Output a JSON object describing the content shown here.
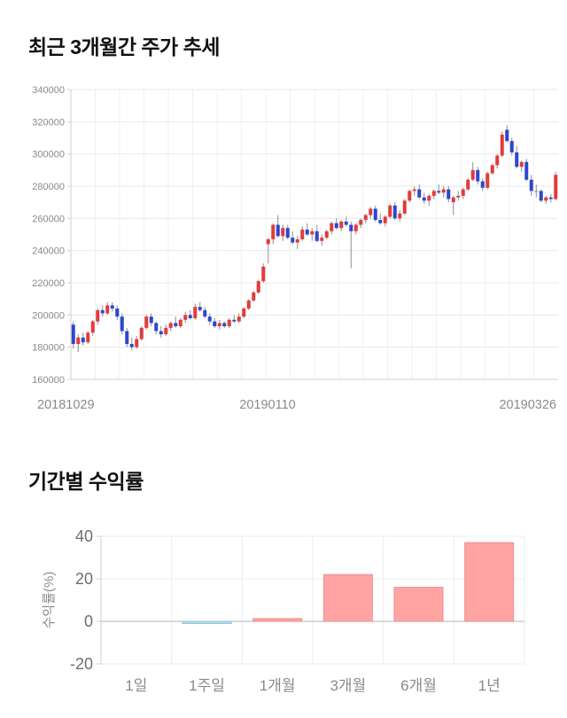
{
  "chart_data": [
    {
      "type": "candlestick",
      "title": "최근 3개월간 주가 추세",
      "x_tick_labels": [
        "20181029",
        "20190110",
        "20190326"
      ],
      "y_ticks": [
        340000,
        320000,
        300000,
        280000,
        260000,
        240000,
        220000,
        200000,
        180000,
        160000
      ],
      "ylim": [
        160000,
        340000
      ],
      "unit": "KRW",
      "grid": true,
      "colors": {
        "up": "#e23b3b",
        "down": "#2c47cf",
        "wick": "#8c8c8c",
        "grid": "#e8e8e8",
        "grid_vertical": "#f1f1f1",
        "axis": "#cfcfcf",
        "tick_text": "#8a8a8a"
      },
      "candles": [
        [
          194000,
          196000,
          179000,
          182000
        ],
        [
          182000,
          188000,
          177000,
          186000
        ],
        [
          186000,
          189000,
          181000,
          183000
        ],
        [
          183000,
          190000,
          182000,
          189000
        ],
        [
          189000,
          197000,
          187000,
          196000
        ],
        [
          196000,
          204000,
          194000,
          203000
        ],
        [
          203000,
          206000,
          199000,
          201000
        ],
        [
          201000,
          208000,
          200000,
          206000
        ],
        [
          206000,
          208000,
          202000,
          204000
        ],
        [
          204000,
          206000,
          197000,
          199000
        ],
        [
          199000,
          201000,
          188000,
          190000
        ],
        [
          190000,
          192000,
          180000,
          182000
        ],
        [
          182000,
          186000,
          178000,
          180000
        ],
        [
          180000,
          187000,
          179000,
          185000
        ],
        [
          185000,
          193000,
          184000,
          192000
        ],
        [
          192000,
          200000,
          191000,
          199000
        ],
        [
          199000,
          201000,
          193000,
          195000
        ],
        [
          195000,
          196000,
          188000,
          190000
        ],
        [
          190000,
          193000,
          186000,
          188000
        ],
        [
          188000,
          194000,
          187000,
          192000
        ],
        [
          192000,
          196000,
          190000,
          195000
        ],
        [
          195000,
          199000,
          192000,
          193000
        ],
        [
          193000,
          198000,
          192000,
          197000
        ],
        [
          197000,
          202000,
          195000,
          200000
        ],
        [
          200000,
          203000,
          197000,
          198000
        ],
        [
          198000,
          207000,
          197000,
          205000
        ],
        [
          205000,
          208000,
          202000,
          203000
        ],
        [
          203000,
          205000,
          198000,
          199000
        ],
        [
          199000,
          201000,
          194000,
          196000
        ],
        [
          196000,
          198000,
          192000,
          193000
        ],
        [
          193000,
          197000,
          191000,
          195000
        ],
        [
          195000,
          196000,
          192000,
          193000
        ],
        [
          193000,
          198000,
          192000,
          197000
        ],
        [
          197000,
          200000,
          195000,
          196000
        ],
        [
          196000,
          201000,
          195000,
          199000
        ],
        [
          199000,
          205000,
          198000,
          204000
        ],
        [
          204000,
          210000,
          203000,
          209000
        ],
        [
          209000,
          215000,
          208000,
          214000
        ],
        [
          214000,
          222000,
          213000,
          221000
        ],
        [
          221000,
          232000,
          220000,
          230000
        ],
        [
          244000,
          248000,
          232000,
          247000
        ],
        [
          247000,
          257000,
          244000,
          256000
        ],
        [
          256000,
          262000,
          248000,
          249000
        ],
        [
          249000,
          256000,
          246000,
          254000
        ],
        [
          254000,
          256000,
          247000,
          248000
        ],
        [
          248000,
          252000,
          244000,
          245000
        ],
        [
          245000,
          249000,
          241000,
          247000
        ],
        [
          247000,
          255000,
          246000,
          253000
        ],
        [
          253000,
          257000,
          249000,
          250000
        ],
        [
          250000,
          254000,
          246000,
          252000
        ],
        [
          252000,
          256000,
          245000,
          246000
        ],
        [
          246000,
          250000,
          243000,
          248000
        ],
        [
          248000,
          253000,
          247000,
          252000
        ],
        [
          252000,
          258000,
          250000,
          257000
        ],
        [
          257000,
          260000,
          253000,
          254000
        ],
        [
          254000,
          259000,
          252000,
          258000
        ],
        [
          258000,
          261000,
          255000,
          256000
        ],
        [
          256000,
          258000,
          229000,
          252000
        ],
        [
          252000,
          257000,
          250000,
          256000
        ],
        [
          256000,
          260000,
          254000,
          259000
        ],
        [
          259000,
          263000,
          257000,
          262000
        ],
        [
          262000,
          267000,
          260000,
          266000
        ],
        [
          266000,
          268000,
          258000,
          259000
        ],
        [
          259000,
          263000,
          256000,
          257000
        ],
        [
          257000,
          262000,
          255000,
          261000
        ],
        [
          261000,
          269000,
          260000,
          268000
        ],
        [
          268000,
          270000,
          259000,
          260000
        ],
        [
          260000,
          265000,
          258000,
          263000
        ],
        [
          263000,
          272000,
          262000,
          271000
        ],
        [
          271000,
          278000,
          270000,
          277000
        ],
        [
          277000,
          280000,
          274000,
          278000
        ],
        [
          278000,
          281000,
          272000,
          273000
        ],
        [
          273000,
          276000,
          269000,
          271000
        ],
        [
          271000,
          275000,
          268000,
          274000
        ],
        [
          274000,
          278000,
          272000,
          277000
        ],
        [
          277000,
          281000,
          275000,
          276000
        ],
        [
          276000,
          280000,
          273000,
          278000
        ],
        [
          278000,
          280000,
          270000,
          272000
        ],
        [
          270000,
          274000,
          262000,
          273000
        ],
        [
          273000,
          277000,
          271000,
          274000
        ],
        [
          274000,
          279000,
          272000,
          278000
        ],
        [
          278000,
          285000,
          277000,
          284000
        ],
        [
          284000,
          295000,
          283000,
          290000
        ],
        [
          290000,
          292000,
          281000,
          283000
        ],
        [
          283000,
          285000,
          277000,
          279000
        ],
        [
          279000,
          289000,
          278000,
          288000
        ],
        [
          288000,
          294000,
          287000,
          293000
        ],
        [
          293000,
          300000,
          291000,
          299000
        ],
        [
          299000,
          314000,
          298000,
          312000
        ],
        [
          315000,
          318000,
          307000,
          308000
        ],
        [
          308000,
          310000,
          299000,
          301000
        ],
        [
          301000,
          305000,
          291000,
          292000
        ],
        [
          292000,
          296000,
          289000,
          295000
        ],
        [
          295000,
          297000,
          283000,
          284000
        ],
        [
          284000,
          287000,
          274000,
          277000
        ],
        [
          277000,
          281000,
          273000,
          277000
        ],
        [
          277000,
          278000,
          270000,
          271000
        ],
        [
          271000,
          274000,
          269000,
          273000
        ],
        [
          273000,
          275000,
          270000,
          272000
        ],
        [
          272000,
          289000,
          271000,
          287000
        ]
      ]
    },
    {
      "type": "bar",
      "title": "기간별 수익률",
      "categories": [
        "1일",
        "1주일",
        "1개월",
        "3개월",
        "6개월",
        "1년"
      ],
      "values": [
        0,
        -1,
        1.3,
        22,
        16,
        37
      ],
      "ylabel": "수익률(%)",
      "ylim": [
        -20,
        40
      ],
      "y_ticks": [
        40,
        20,
        0,
        -20
      ],
      "grid": true,
      "legend": "none",
      "colors": {
        "positive": "#ffa3a3",
        "positive_border": "#e9918f",
        "negative": "#b7dde8",
        "negative_border": "#8ec7d9",
        "grid": "#ececec",
        "zero_line": "#b5b5b5",
        "axis": "#cfcfcf",
        "y_tick_text": "#6e6e6e",
        "x_tick_text": "#8a8a8a",
        "ylabel_text": "#8a8a8a"
      }
    }
  ]
}
